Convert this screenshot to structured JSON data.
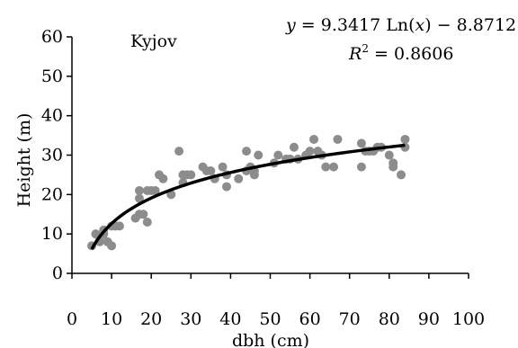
{
  "chart_data": {
    "type": "scatter",
    "title": "",
    "xlabel": "dbh (cm)",
    "ylabel": "Height (m)",
    "xlim": [
      0,
      100
    ],
    "ylim": [
      0,
      60
    ],
    "xticks": [
      "0",
      "10",
      "20",
      "30",
      "40",
      "50",
      "60",
      "70",
      "80",
      "90",
      "100"
    ],
    "yticks": [
      "0",
      "10",
      "20",
      "30",
      "40",
      "50",
      "60"
    ],
    "grid": false,
    "site_label": "Kyjov",
    "equation": {
      "y_var": "y",
      "rhs_prefix": " = 9.3417 Ln(",
      "x_var": "x",
      "rhs_suffix": ") − 8.8712",
      "r2_base": "R",
      "r2_exp": "2",
      "r2_value": " = 0.8606"
    },
    "colors": {
      "points": "#8c8c8c",
      "trendline": "#000000",
      "axes": "#000000"
    },
    "series": [
      {
        "kind": "points",
        "x": [
          5,
          6,
          7,
          7,
          8,
          8,
          9,
          10,
          10,
          11,
          12,
          16,
          17,
          17,
          17,
          18,
          19,
          19,
          20,
          21,
          22,
          23,
          25,
          27,
          28,
          28,
          29,
          30,
          33,
          34,
          35,
          36,
          38,
          39,
          39,
          42,
          44,
          44,
          45,
          46,
          46,
          47,
          51,
          52,
          54,
          55,
          56,
          57,
          59,
          60,
          61,
          62,
          63,
          64,
          66,
          67,
          73,
          73,
          74,
          75,
          76,
          77,
          78,
          80,
          81,
          81,
          83,
          84,
          84
        ],
        "y": [
          7,
          10,
          8,
          9,
          11,
          10,
          8,
          7,
          12,
          12,
          12,
          14,
          15,
          19,
          21,
          15,
          13,
          21,
          21,
          21,
          25,
          24,
          20,
          31,
          25,
          23,
          25,
          25,
          27,
          26,
          26,
          24,
          27,
          25,
          22,
          24,
          26,
          31,
          27,
          25,
          26,
          30,
          28,
          30,
          29,
          29,
          32,
          29,
          30,
          31,
          34,
          31,
          30,
          27,
          27,
          34,
          33,
          27,
          31,
          31,
          31,
          32,
          32,
          30,
          28,
          27,
          25,
          32,
          34
        ]
      },
      {
        "kind": "trendline",
        "function": "9.3417*ln(x)-8.8712",
        "x_range": [
          5,
          84
        ]
      }
    ]
  }
}
